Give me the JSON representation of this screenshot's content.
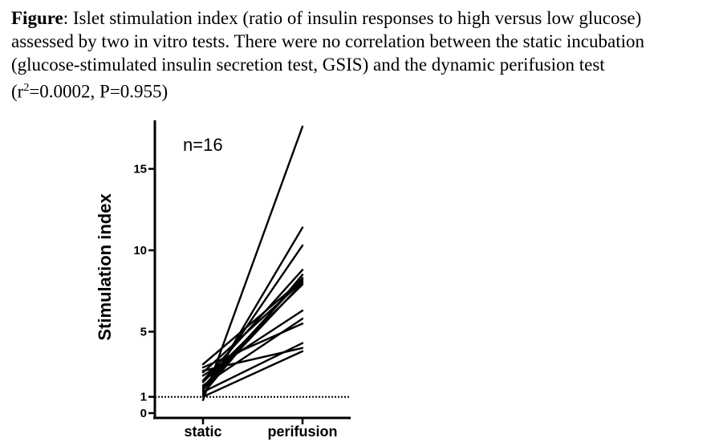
{
  "caption": {
    "bold_lead": "Figure",
    "line1": ": Islet stimulation index (ratio of insulin responses to high versus low glucose)",
    "line2": "assessed by two in vitro tests. There were no correlation between the static incubation",
    "line3": " (glucose-stimulated insulin secretion test, GSIS) and the dynamic perifusion test",
    "line4_pre": "(r",
    "line4_sup": "2",
    "line4_post": "=0.0002, P=0.955)"
  },
  "chart_data": {
    "type": "line",
    "title": "",
    "annotation": "n=16",
    "xlabel": "",
    "ylabel": "Stimulation index",
    "categories": [
      "static",
      "perifusion"
    ],
    "ylim": [
      0,
      17.5
    ],
    "yticks": [
      0,
      1,
      5,
      10,
      15
    ],
    "reference_line": {
      "y": 1,
      "style": "dotted"
    },
    "series": [
      {
        "values": [
          0.8,
          17.6
        ]
      },
      {
        "values": [
          1.1,
          11.4
        ]
      },
      {
        "values": [
          1.4,
          10.3
        ]
      },
      {
        "values": [
          2.0,
          8.8
        ]
      },
      {
        "values": [
          1.2,
          8.5
        ]
      },
      {
        "values": [
          1.6,
          8.3
        ]
      },
      {
        "values": [
          2.5,
          8.1
        ]
      },
      {
        "values": [
          1.5,
          8.0
        ]
      },
      {
        "values": [
          1.9,
          7.9
        ]
      },
      {
        "values": [
          3.0,
          8.2
        ]
      },
      {
        "values": [
          2.3,
          6.3
        ]
      },
      {
        "values": [
          1.7,
          5.8
        ]
      },
      {
        "values": [
          2.8,
          5.5
        ]
      },
      {
        "values": [
          1.3,
          4.3
        ]
      },
      {
        "values": [
          2.6,
          4.0
        ]
      },
      {
        "values": [
          1.0,
          3.8
        ]
      }
    ]
  }
}
